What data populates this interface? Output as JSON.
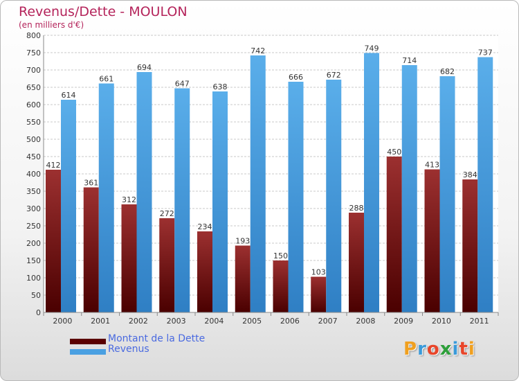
{
  "header": {
    "title": "Revenus/Dette - MOULON",
    "subtitle": "(en milliers d'€)"
  },
  "chart_data": {
    "type": "bar",
    "categories": [
      "2000",
      "2001",
      "2002",
      "2003",
      "2004",
      "2005",
      "2006",
      "2007",
      "2008",
      "2009",
      "2010",
      "2011"
    ],
    "series": [
      {
        "name": "Montant de la Dette",
        "values": [
          412,
          361,
          312,
          272,
          234,
          193,
          150,
          103,
          288,
          450,
          413,
          384
        ],
        "color": "#8b1a1a"
      },
      {
        "name": "Revenus",
        "values": [
          614,
          661,
          694,
          647,
          638,
          742,
          666,
          672,
          749,
          714,
          682,
          737
        ],
        "color": "#4da3e6"
      }
    ],
    "yticks": [
      "0",
      "50",
      "100",
      "150",
      "200",
      "250",
      "300",
      "350",
      "400",
      "450",
      "500",
      "550",
      "600",
      "650",
      "700",
      "750",
      "800"
    ],
    "ylim": [
      0,
      800
    ],
    "grid": true,
    "legend_position": "bottom-left"
  },
  "legend": {
    "items": [
      {
        "label": "Montant de la Dette",
        "color": "#5a0000"
      },
      {
        "label": "Revenus",
        "color": "#4aa0e2"
      }
    ]
  },
  "logo": {
    "letters": [
      "P",
      "r",
      "o",
      "x",
      "i",
      "t",
      "i"
    ],
    "colors": [
      "#f0a020",
      "#3a9ad9",
      "#e8452a",
      "#2d9f3a",
      "#3a9ad9",
      "#e8452a",
      "#f0a020"
    ]
  }
}
